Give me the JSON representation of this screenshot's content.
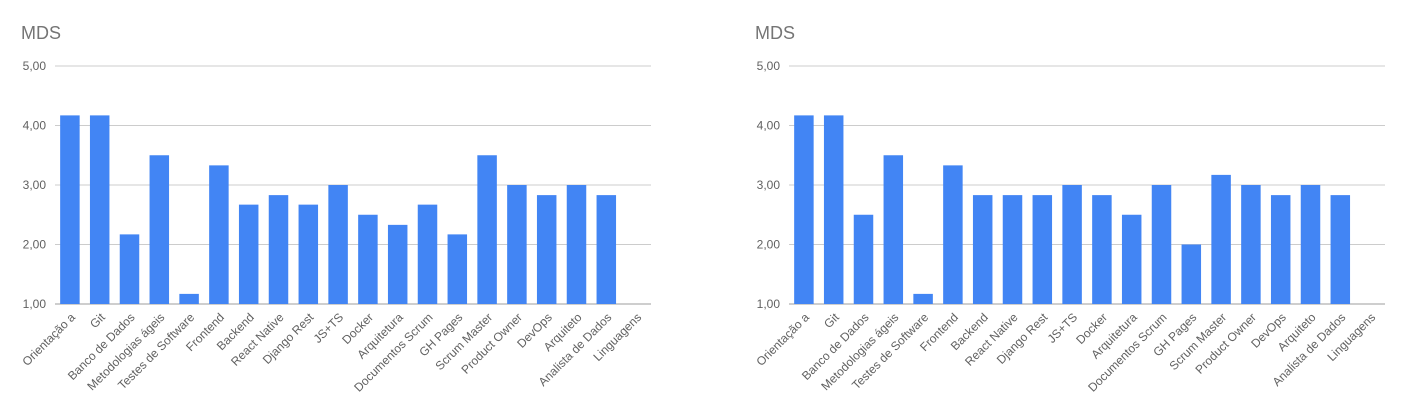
{
  "chart_data": [
    {
      "type": "bar",
      "title": "MDS",
      "xlabel": "",
      "ylabel": "",
      "ylim": [
        1,
        5
      ],
      "yticks": [
        "1,00",
        "2,00",
        "3,00",
        "4,00",
        "5,00"
      ],
      "grid": true,
      "bar_color": "#4285f4",
      "categories": [
        "Orientação a",
        "Git",
        "Banco de Dados",
        "Metodologias ágeis",
        "Testes de Software",
        "Frontend",
        "Backend",
        "React Native",
        "Django Rest",
        "JS+TS",
        "Docker",
        "Arquitetura",
        "Documentos Scrum",
        "GH Pages",
        "Scrum Master",
        "Product Owner",
        "DevOps",
        "Arquiteto",
        "Analista de Dados",
        "Linguagens"
      ],
      "values": [
        4.17,
        4.17,
        2.17,
        3.5,
        1.17,
        3.33,
        2.67,
        2.83,
        2.67,
        3.0,
        2.5,
        2.33,
        2.67,
        2.17,
        3.5,
        3.0,
        2.83,
        3.0,
        2.83,
        null
      ]
    },
    {
      "type": "bar",
      "title": "MDS",
      "xlabel": "",
      "ylabel": "",
      "ylim": [
        1,
        5
      ],
      "yticks": [
        "1,00",
        "2,00",
        "3,00",
        "4,00",
        "5,00"
      ],
      "grid": true,
      "bar_color": "#4285f4",
      "categories": [
        "Orientação a",
        "Git",
        "Banco de Dados",
        "Metodologias ágeis",
        "Testes de Software",
        "Frontend",
        "Backend",
        "React Native",
        "Django Rest",
        "JS+TS",
        "Docker",
        "Arquitetura",
        "Documentos Scrum",
        "GH Pages",
        "Scrum Master",
        "Product Owner",
        "DevOps",
        "Arquiteto",
        "Analista de Dados",
        "Linguagens"
      ],
      "values": [
        4.17,
        4.17,
        2.5,
        3.5,
        1.17,
        3.33,
        2.83,
        2.83,
        2.83,
        3.0,
        2.83,
        2.5,
        3.0,
        2.0,
        3.17,
        3.0,
        2.83,
        3.0,
        2.83,
        null
      ]
    }
  ]
}
